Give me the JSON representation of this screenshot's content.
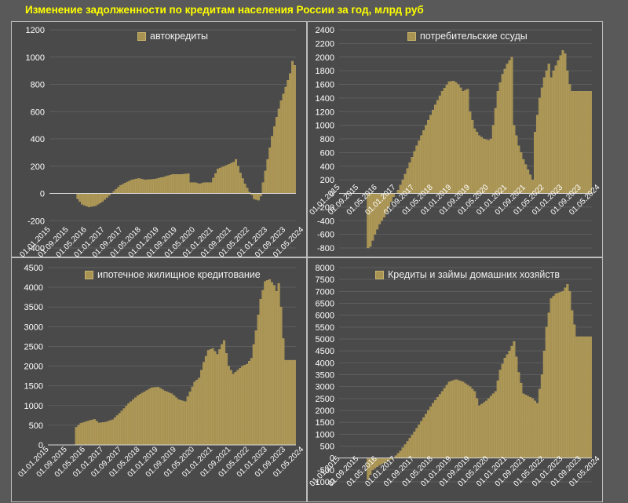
{
  "title": "Изменение задолженности по кредитам населения России за год, млрд руб",
  "colors": {
    "bar": "#a89353",
    "bar_edge": "#c4ad68",
    "background": "#4a4a4a",
    "text": "#ffffff",
    "title": "#ffff00"
  },
  "chart_data": [
    {
      "type": "bar",
      "legend": "автокредиты",
      "ylim": [
        -400,
        1200
      ],
      "yticks": [
        -400,
        -200,
        0,
        200,
        400,
        600,
        800,
        1000,
        1200
      ],
      "xtick_labels": [
        "01.01.2015",
        "01.09.2015",
        "01.05.2016",
        "01.01.2017",
        "01.09.2017",
        "01.05.2018",
        "01.01.2019",
        "01.09.2019",
        "01.05.2020",
        "01.01.2021",
        "01.09.2021",
        "01.05.2022",
        "01.01.2023",
        "01.09.2023",
        "01.05.2024"
      ],
      "anchors": [
        [
          0,
          0
        ],
        [
          11,
          0
        ],
        [
          12,
          -40
        ],
        [
          14,
          -80
        ],
        [
          17,
          -100
        ],
        [
          20,
          -90
        ],
        [
          23,
          -60
        ],
        [
          27,
          0
        ],
        [
          31,
          60
        ],
        [
          36,
          100
        ],
        [
          39,
          110
        ],
        [
          42,
          100
        ],
        [
          46,
          105
        ],
        [
          50,
          120
        ],
        [
          54,
          140
        ],
        [
          58,
          140
        ],
        [
          61,
          145
        ],
        [
          62,
          80
        ],
        [
          64,
          80
        ],
        [
          66,
          70
        ],
        [
          68,
          80
        ],
        [
          71,
          80
        ],
        [
          74,
          180
        ],
        [
          77,
          200
        ],
        [
          81,
          230
        ],
        [
          82,
          250
        ],
        [
          84,
          150
        ],
        [
          86,
          70
        ],
        [
          88,
          10
        ],
        [
          89,
          -10
        ],
        [
          90,
          -40
        ],
        [
          92,
          -50
        ],
        [
          93,
          -20
        ],
        [
          94,
          80
        ],
        [
          96,
          250
        ],
        [
          98,
          420
        ],
        [
          100,
          560
        ],
        [
          102,
          680
        ],
        [
          104,
          780
        ],
        [
          106,
          880
        ],
        [
          107,
          970
        ],
        [
          108,
          940
        ]
      ]
    },
    {
      "type": "bar",
      "legend": "потребительские ссуды",
      "ylim": [
        -800,
        2400
      ],
      "yticks": [
        -800,
        -600,
        -400,
        -200,
        0,
        200,
        400,
        600,
        800,
        1000,
        1200,
        1400,
        1600,
        1800,
        2000,
        2200,
        2400
      ],
      "xtick_labels": [
        "01.01.2015",
        "01.09.2015",
        "01.05.2016",
        "01.01.2017",
        "01.09.2017",
        "01.05.2018",
        "01.01.2019",
        "01.09.2019",
        "01.05.2020",
        "01.01.2021",
        "01.09.2021",
        "01.05.2022",
        "01.01.2023",
        "01.09.2023",
        "01.05.2024"
      ],
      "anchors": [
        [
          0,
          0
        ],
        [
          11,
          0
        ],
        [
          12,
          -800
        ],
        [
          13,
          -780
        ],
        [
          15,
          -600
        ],
        [
          17,
          -450
        ],
        [
          19,
          -350
        ],
        [
          21,
          -200
        ],
        [
          23,
          -50
        ],
        [
          24,
          0
        ],
        [
          25,
          50
        ],
        [
          27,
          200
        ],
        [
          30,
          450
        ],
        [
          33,
          700
        ],
        [
          37,
          1000
        ],
        [
          41,
          1300
        ],
        [
          44,
          1500
        ],
        [
          47,
          1640
        ],
        [
          49,
          1650
        ],
        [
          51,
          1600
        ],
        [
          53,
          1500
        ],
        [
          55,
          1530
        ],
        [
          56,
          1200
        ],
        [
          58,
          950
        ],
        [
          60,
          850
        ],
        [
          62,
          800
        ],
        [
          64,
          780
        ],
        [
          65,
          800
        ],
        [
          66,
          1000
        ],
        [
          68,
          1500
        ],
        [
          70,
          1750
        ],
        [
          72,
          1900
        ],
        [
          74,
          2000
        ],
        [
          75,
          1000
        ],
        [
          77,
          700
        ],
        [
          79,
          500
        ],
        [
          81,
          350
        ],
        [
          83,
          200
        ],
        [
          84,
          900
        ],
        [
          86,
          1400
        ],
        [
          88,
          1700
        ],
        [
          90,
          1900
        ],
        [
          91,
          1700
        ],
        [
          92,
          1800
        ],
        [
          94,
          1950
        ],
        [
          96,
          2100
        ],
        [
          97,
          2050
        ],
        [
          98,
          1800
        ],
        [
          99,
          1600
        ],
        [
          100,
          1500
        ]
      ]
    },
    {
      "type": "bar",
      "legend": "ипотечное жилищное кредитование",
      "ylim": [
        0,
        4500
      ],
      "yticks": [
        0,
        500,
        1000,
        1500,
        2000,
        2500,
        3000,
        3500,
        4000,
        4500
      ],
      "xtick_labels": [
        "01.01.2015",
        "01.09.2015",
        "01.05.2016",
        "01.01.2017",
        "01.09.2017",
        "01.05.2018",
        "01.01.2019",
        "01.09.2019",
        "01.05.2020",
        "01.01.2021",
        "01.09.2021",
        "01.05.2022",
        "01.01.2023",
        "01.09.2023",
        "01.05.2024"
      ],
      "anchors": [
        [
          0,
          0
        ],
        [
          11,
          0
        ],
        [
          12,
          450
        ],
        [
          14,
          550
        ],
        [
          18,
          620
        ],
        [
          20,
          650
        ],
        [
          22,
          560
        ],
        [
          25,
          580
        ],
        [
          28,
          640
        ],
        [
          31,
          800
        ],
        [
          35,
          1050
        ],
        [
          39,
          1250
        ],
        [
          42,
          1350
        ],
        [
          45,
          1450
        ],
        [
          48,
          1470
        ],
        [
          51,
          1370
        ],
        [
          54,
          1300
        ],
        [
          57,
          1150
        ],
        [
          60,
          1100
        ],
        [
          62,
          1350
        ],
        [
          64,
          1600
        ],
        [
          66,
          1700
        ],
        [
          68,
          2100
        ],
        [
          70,
          2400
        ],
        [
          72,
          2450
        ],
        [
          74,
          2300
        ],
        [
          76,
          2550
        ],
        [
          77,
          2650
        ],
        [
          79,
          2000
        ],
        [
          81,
          1800
        ],
        [
          83,
          1900
        ],
        [
          85,
          2000
        ],
        [
          87,
          2050
        ],
        [
          89,
          2200
        ],
        [
          91,
          2900
        ],
        [
          93,
          3700
        ],
        [
          95,
          4150
        ],
        [
          97,
          4200
        ],
        [
          99,
          4050
        ],
        [
          100,
          3900
        ],
        [
          101,
          4100
        ],
        [
          102,
          3500
        ],
        [
          103,
          2700
        ],
        [
          104,
          2150
        ]
      ]
    },
    {
      "type": "bar",
      "legend": "Кредиты и займы домашних хозяйств",
      "ylim": [
        -1000,
        8000
      ],
      "yticks": [
        -1000,
        -500,
        0,
        500,
        1000,
        1500,
        2000,
        2500,
        3000,
        3500,
        4000,
        4500,
        5000,
        5500,
        6000,
        6500,
        7000,
        7500,
        8000
      ],
      "xtick_labels": [
        "01.01.2015",
        "01.09.2015",
        "01.05.2016",
        "01.01.2017",
        "01.09.2017",
        "01.05.2018",
        "01.01.2019",
        "01.09.2019",
        "01.05.2020",
        "01.01.2021",
        "01.09.2021",
        "01.05.2022",
        "01.01.2023",
        "01.09.2023",
        "01.05.2024"
      ],
      "anchors": [
        [
          0,
          0
        ],
        [
          11,
          0
        ],
        [
          12,
          -900
        ],
        [
          14,
          -500
        ],
        [
          17,
          -300
        ],
        [
          20,
          -150
        ],
        [
          23,
          0
        ],
        [
          26,
          300
        ],
        [
          29,
          700
        ],
        [
          32,
          1100
        ],
        [
          36,
          1700
        ],
        [
          40,
          2300
        ],
        [
          44,
          2800
        ],
        [
          47,
          3200
        ],
        [
          50,
          3300
        ],
        [
          53,
          3200
        ],
        [
          56,
          3000
        ],
        [
          58,
          2800
        ],
        [
          60,
          2200
        ],
        [
          63,
          2400
        ],
        [
          65,
          2600
        ],
        [
          67,
          2800
        ],
        [
          69,
          3700
        ],
        [
          71,
          4200
        ],
        [
          73,
          4500
        ],
        [
          75,
          4900
        ],
        [
          77,
          3600
        ],
        [
          79,
          2700
        ],
        [
          81,
          2600
        ],
        [
          83,
          2500
        ],
        [
          85,
          2300
        ],
        [
          87,
          3500
        ],
        [
          89,
          5500
        ],
        [
          91,
          6700
        ],
        [
          93,
          6900
        ],
        [
          96,
          7000
        ],
        [
          98,
          7300
        ],
        [
          99,
          7000
        ],
        [
          100,
          6200
        ],
        [
          101,
          5600
        ],
        [
          102,
          5100
        ]
      ]
    }
  ]
}
